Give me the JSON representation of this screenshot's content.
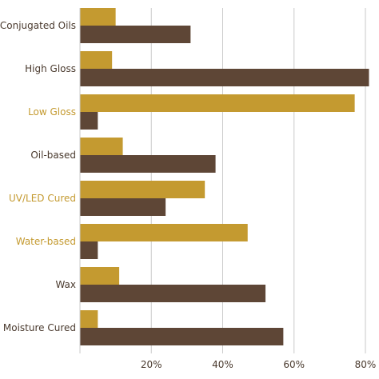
{
  "chart_data": {
    "type": "bar",
    "orientation": "horizontal",
    "categories": [
      "Conjugated Oils",
      "High Gloss",
      "Low Gloss",
      "Oil-based",
      "UV/LED Cured",
      "Water-based",
      "Wax",
      "Moisture Cured"
    ],
    "category_label_colors": [
      "#4a3a2e",
      "#4a3a2e",
      "#c49a30",
      "#4a3a2e",
      "#c49a30",
      "#c49a30",
      "#4a3a2e",
      "#4a3a2e"
    ],
    "series": [
      {
        "color": "#c49a30",
        "values": [
          10,
          9,
          77,
          12,
          35,
          47,
          11,
          5
        ]
      },
      {
        "color": "#5e4636",
        "values": [
          31,
          81,
          5,
          38,
          24,
          5,
          52,
          57
        ]
      }
    ],
    "xlim": [
      0,
      80
    ],
    "xticks": [
      "20%",
      "40%",
      "60%",
      "80%"
    ],
    "xtick_values": [
      20,
      40,
      60,
      80
    ],
    "grid": "vertical",
    "legend": "none"
  }
}
